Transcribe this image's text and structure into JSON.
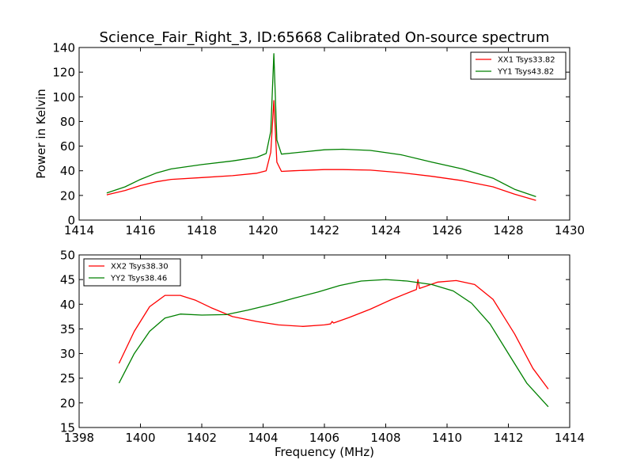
{
  "window_title": "Science_Fair_Right_3, ID:65668 Calibrated On-source spectrum",
  "chart_data": [
    {
      "type": "line",
      "title": "Science_Fair_Right_3, ID:65668 Calibrated On-source spectrum",
      "xlabel": "",
      "ylabel": "Power in Kelvin",
      "xlim": [
        1414,
        1430
      ],
      "ylim": [
        0,
        140
      ],
      "xticks": [
        1414,
        1416,
        1418,
        1420,
        1422,
        1424,
        1426,
        1428,
        1430
      ],
      "yticks": [
        0,
        20,
        40,
        60,
        80,
        100,
        120,
        140
      ],
      "grid": false,
      "legend_position": "top-right",
      "series": [
        {
          "name": "XX1 Tsys33.82",
          "color": "#ff0000",
          "x": [
            1414.9,
            1415.5,
            1416.0,
            1416.5,
            1417.0,
            1418.0,
            1419.0,
            1419.8,
            1420.1,
            1420.25,
            1420.35,
            1420.45,
            1420.6,
            1421.0,
            1422.0,
            1422.6,
            1423.5,
            1424.5,
            1425.5,
            1426.5,
            1427.5,
            1428.2,
            1428.9
          ],
          "y": [
            20.5,
            24,
            28,
            31,
            33,
            34.5,
            36,
            38,
            40,
            55,
            97,
            47,
            39.5,
            40,
            41,
            41,
            40.5,
            38.5,
            35.5,
            32,
            27,
            21,
            16
          ]
        },
        {
          "name": "YY1 Tsys43.82",
          "color": "#008000",
          "x": [
            1414.9,
            1415.5,
            1416.0,
            1416.5,
            1417.0,
            1418.0,
            1419.0,
            1419.8,
            1420.1,
            1420.25,
            1420.35,
            1420.45,
            1420.6,
            1421.0,
            1422.0,
            1422.6,
            1423.5,
            1424.5,
            1425.5,
            1426.5,
            1427.5,
            1428.2,
            1428.9
          ],
          "y": [
            22,
            27,
            33,
            38,
            41.5,
            45,
            48,
            51,
            54,
            72,
            135,
            65,
            53.5,
            54.5,
            57,
            57.5,
            56.5,
            53,
            47,
            41.5,
            34,
            25,
            19
          ]
        }
      ]
    },
    {
      "type": "line",
      "title": "",
      "xlabel": "Frequency (MHz)",
      "ylabel": "",
      "xlim": [
        1398,
        1414
      ],
      "ylim": [
        15,
        50
      ],
      "xticks": [
        1398,
        1400,
        1402,
        1404,
        1406,
        1408,
        1410,
        1412,
        1414
      ],
      "yticks": [
        15,
        20,
        25,
        30,
        35,
        40,
        45,
        50
      ],
      "grid": false,
      "legend_position": "top-left",
      "series": [
        {
          "name": "XX2 Tsys38.30",
          "color": "#ff0000",
          "x": [
            1399.3,
            1399.8,
            1400.3,
            1400.8,
            1401.3,
            1401.8,
            1402.3,
            1403.0,
            1403.8,
            1404.5,
            1405.3,
            1406.0,
            1406.2,
            1406.25,
            1406.3,
            1406.8,
            1407.5,
            1408.2,
            1409.0,
            1409.05,
            1409.1,
            1409.7,
            1410.3,
            1410.9,
            1411.5,
            1412.2,
            1412.8,
            1413.3
          ],
          "y": [
            28,
            34.5,
            39.5,
            41.8,
            41.8,
            40.8,
            39.3,
            37.5,
            36.5,
            35.8,
            35.5,
            35.8,
            36,
            36.5,
            36.2,
            37.3,
            39,
            41,
            43,
            45,
            43.2,
            44.5,
            44.8,
            44,
            41,
            34,
            27,
            22.8
          ]
        },
        {
          "name": "YY2 Tsys38.46",
          "color": "#008000",
          "x": [
            1399.3,
            1399.8,
            1400.3,
            1400.8,
            1401.3,
            1402.0,
            1402.8,
            1403.5,
            1404.3,
            1405.0,
            1405.8,
            1406.5,
            1407.2,
            1408.0,
            1408.7,
            1409.5,
            1410.2,
            1410.8,
            1411.4,
            1412.0,
            1412.6,
            1413.3
          ],
          "y": [
            24,
            30,
            34.5,
            37.2,
            38,
            37.8,
            37.9,
            38.8,
            40,
            41.2,
            42.5,
            43.8,
            44.7,
            45,
            44.7,
            44,
            42.7,
            40.2,
            36,
            30,
            24,
            19.2
          ]
        }
      ]
    }
  ]
}
